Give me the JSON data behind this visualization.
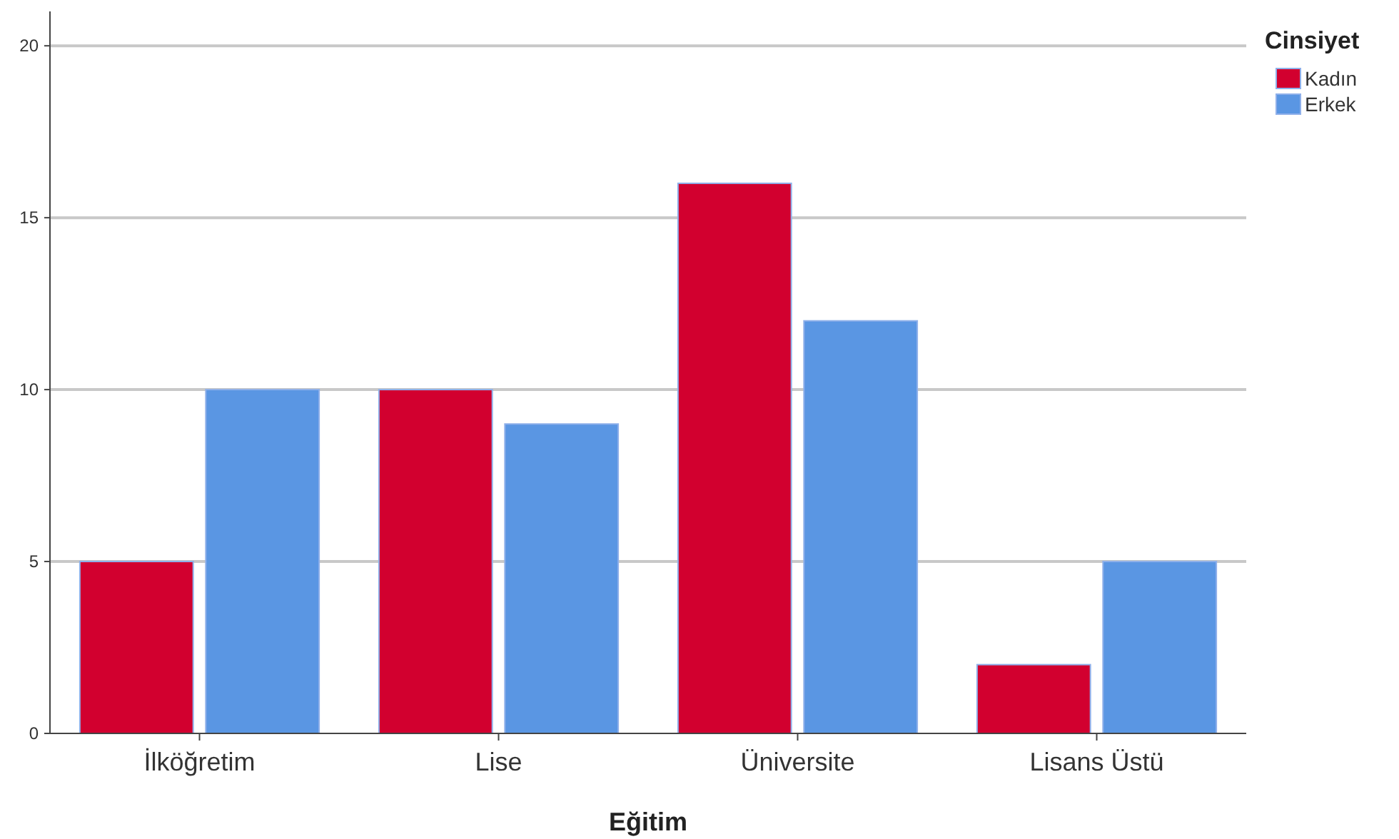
{
  "chart_data": {
    "type": "bar",
    "xlabel": "Eğitim",
    "legend_title": "Cinsiyet",
    "categories": [
      "İlköğretim",
      "Lise",
      "Üniversite",
      "Lisans Üstü"
    ],
    "series": [
      {
        "name": "Kadın",
        "color": "#d2002f",
        "values": [
          5,
          10,
          16,
          2
        ]
      },
      {
        "name": "Erkek",
        "color": "#5a96e3",
        "values": [
          10,
          9,
          12,
          5
        ]
      }
    ],
    "ylim": [
      0,
      21
    ],
    "yticks": [
      0,
      5,
      10,
      15,
      20
    ],
    "grid": "y",
    "legend": "top right"
  }
}
